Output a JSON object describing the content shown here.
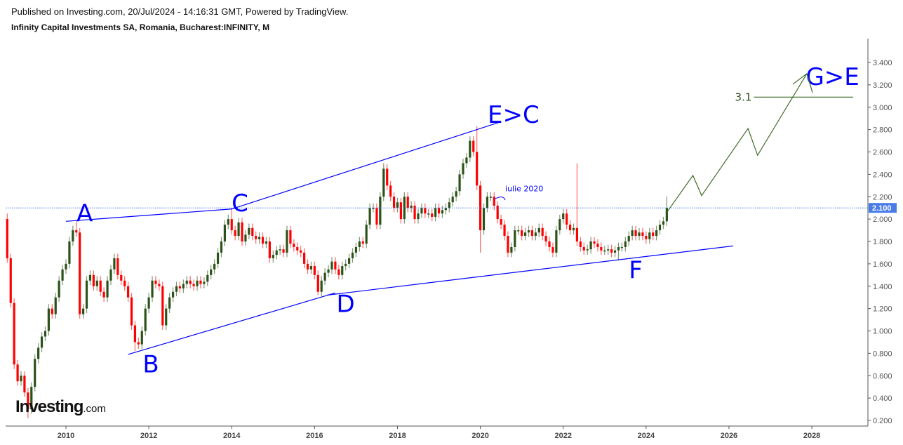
{
  "header": {
    "published": "Published on Investing.com, 20/Jul/2024 - 14:16:31 GMT, Powered by TradingView.",
    "instrument": "Infinity Capital Investments SA, Romania, Bucharest:INFINITY, M"
  },
  "logo": {
    "text": "Investing",
    "suffix": ".com"
  },
  "colors": {
    "up": "#2b5219",
    "down": "#ff0000",
    "annotation": "#0000ff",
    "projection": "#3d6b27",
    "price_line": "#4a7ce8"
  },
  "chart_data": {
    "type": "candlestick",
    "interval": "monthly",
    "first_month": "2008-08",
    "last_month": "2024-07",
    "first_open": 2.0,
    "close": [
      1.65,
      1.25,
      0.7,
      0.55,
      0.6,
      0.45,
      0.3,
      0.5,
      0.75,
      0.85,
      0.95,
      1.0,
      1.2,
      1.15,
      1.3,
      1.45,
      1.55,
      1.6,
      1.8,
      1.9,
      1.88,
      1.15,
      1.2,
      1.45,
      1.5,
      1.4,
      1.45,
      1.35,
      1.3,
      1.45,
      1.55,
      1.65,
      1.5,
      1.45,
      1.4,
      1.3,
      1.05,
      0.9,
      0.88,
      1.0,
      1.2,
      1.3,
      1.45,
      1.42,
      1.4,
      1.05,
      1.2,
      1.3,
      1.35,
      1.4,
      1.38,
      1.42,
      1.45,
      1.42,
      1.4,
      1.45,
      1.42,
      1.44,
      1.5,
      1.55,
      1.6,
      1.7,
      1.8,
      1.95,
      2.0,
      1.9,
      1.85,
      1.97,
      1.8,
      1.86,
      1.92,
      1.85,
      1.82,
      1.84,
      1.78,
      1.8,
      1.65,
      1.68,
      1.72,
      1.73,
      1.7,
      1.9,
      1.78,
      1.75,
      1.72,
      1.7,
      1.6,
      1.55,
      1.58,
      1.5,
      1.35,
      1.45,
      1.52,
      1.55,
      1.62,
      1.55,
      1.5,
      1.58,
      1.6,
      1.65,
      1.7,
      1.75,
      1.8,
      1.78,
      1.95,
      2.1,
      2.1,
      1.95,
      2.2,
      2.45,
      2.3,
      2.2,
      2.1,
      2.15,
      2.0,
      2.2,
      2.1,
      2.12,
      2.0,
      2.05,
      2.1,
      2.05,
      2.05,
      2.02,
      2.1,
      2.05,
      2.08,
      2.1,
      2.15,
      2.2,
      2.25,
      2.4,
      2.5,
      2.55,
      2.7,
      2.6,
      2.3,
      1.9,
      2.1,
      2.2,
      2.2,
      2.12,
      2.0,
      1.95,
      1.85,
      1.7,
      1.75,
      1.9,
      1.9,
      1.85,
      1.88,
      1.9,
      1.85,
      1.88,
      1.92,
      1.85,
      1.8,
      1.75,
      1.7,
      1.9,
      2.0,
      2.05,
      1.95,
      1.9,
      1.92,
      1.8,
      1.75,
      1.72,
      1.73,
      1.8,
      1.78,
      1.75,
      1.72,
      1.72,
      1.73,
      1.7,
      1.72,
      1.75,
      1.75,
      1.8,
      1.85,
      1.9,
      1.85,
      1.88,
      1.85,
      1.82,
      1.88,
      1.85,
      1.9,
      1.95,
      1.98,
      2.1
    ],
    "wick_extremes": [
      {
        "month": "2008-08",
        "high": 2.05
      },
      {
        "month": "2009-02",
        "low": 0.22
      },
      {
        "month": "2010-04",
        "high": 1.98
      },
      {
        "month": "2011-09",
        "low": 0.82
      },
      {
        "month": "2014-01",
        "high": 2.1
      },
      {
        "month": "2016-02",
        "low": 1.32
      },
      {
        "month": "2017-09",
        "high": 2.5
      },
      {
        "month": "2019-12",
        "high": 2.83
      },
      {
        "month": "2020-01",
        "low": 1.7
      },
      {
        "month": "2022-05",
        "high": 2.5
      },
      {
        "month": "2023-05",
        "low": 1.63
      },
      {
        "month": "2024-07",
        "high": 2.2
      }
    ],
    "last_price": "2.100",
    "last_price_value": 2.1,
    "ylim": [
      0.15,
      3.55
    ],
    "xlim": [
      2008.55,
      2029.4
    ],
    "yticks": [
      "0.200",
      "0.400",
      "0.600",
      "0.800",
      "1.000",
      "1.200",
      "1.400",
      "1.600",
      "1.800",
      "2.000",
      "2.200",
      "2.400",
      "2.600",
      "2.800",
      "3.000",
      "3.200",
      "3.400"
    ],
    "xticks": [
      "2010",
      "2012",
      "2014",
      "2016",
      "2018",
      "2020",
      "2022",
      "2024",
      "2026",
      "2028"
    ],
    "grid": false,
    "annotations": {
      "trendlines": [
        {
          "name": "A-C",
          "from": [
            2010.0,
            1.98
          ],
          "to": [
            2014.0,
            2.09
          ]
        },
        {
          "name": "C-E",
          "from": [
            2014.0,
            2.09
          ],
          "to": [
            2020.5,
            2.87
          ]
        },
        {
          "name": "B-D",
          "from": [
            2011.5,
            0.79
          ],
          "to": [
            2016.5,
            1.34
          ]
        },
        {
          "name": "D-F",
          "from": [
            2016.3,
            1.32
          ],
          "to": [
            2026.1,
            1.76
          ]
        }
      ],
      "labels": [
        {
          "text": "A",
          "at": [
            2010.45,
            1.98
          ]
        },
        {
          "text": "B",
          "at": [
            2012.05,
            0.63
          ]
        },
        {
          "text": "C",
          "at": [
            2014.2,
            2.07
          ]
        },
        {
          "text": "D",
          "at": [
            2016.75,
            1.17
          ]
        },
        {
          "text": "E>C",
          "at": [
            2020.8,
            2.86
          ]
        },
        {
          "text": "F",
          "at": [
            2023.75,
            1.47
          ]
        },
        {
          "text": "G>E",
          "at": [
            2028.5,
            3.2
          ]
        }
      ],
      "note": {
        "text": "iulie 2020",
        "at": [
          2020.6,
          2.25
        ]
      },
      "projection_path": [
        [
          2024.5,
          2.06
        ],
        [
          2025.13,
          2.39
        ],
        [
          2025.34,
          2.21
        ],
        [
          2026.46,
          2.81
        ],
        [
          2026.69,
          2.57
        ],
        [
          2027.88,
          3.3
        ]
      ],
      "target_level": {
        "label": "3.1",
        "value": 3.09,
        "from": 2026.6,
        "to": 2029.0
      }
    }
  }
}
